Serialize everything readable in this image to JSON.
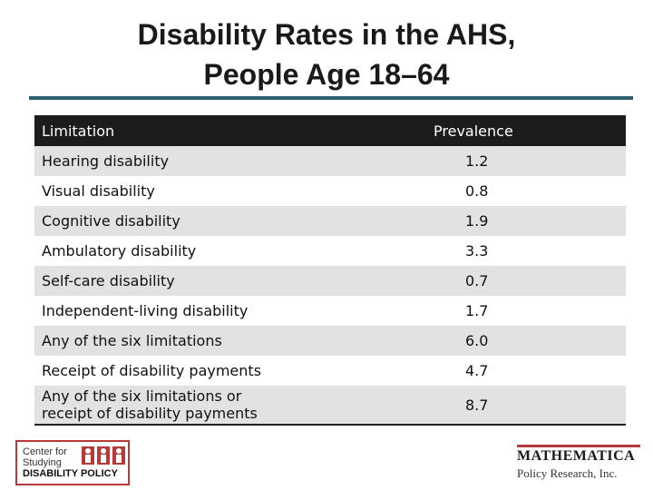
{
  "slide": {
    "title_line1": "Disability Rates in the AHS,",
    "title_line2": "People Age 18–64"
  },
  "table": {
    "columns": [
      "Limitation",
      "Prevalence"
    ],
    "rows": [
      {
        "limitation": "Hearing disability",
        "prevalence": "1.2"
      },
      {
        "limitation": "Visual disability",
        "prevalence": "0.8"
      },
      {
        "limitation": "Cognitive disability",
        "prevalence": "1.9"
      },
      {
        "limitation": "Ambulatory disability",
        "prevalence": "3.3"
      },
      {
        "limitation": "Self-care disability",
        "prevalence": "0.7"
      },
      {
        "limitation": "Independent-living disability",
        "prevalence": "1.7"
      },
      {
        "limitation": "Any of the six limitations",
        "prevalence": "6.0"
      },
      {
        "limitation": "Receipt of disability payments",
        "prevalence": "4.7"
      },
      {
        "limitation_line1": "Any of the six limitations or",
        "limitation_line2": "receipt of disability payments",
        "prevalence": "8.7"
      }
    ]
  },
  "logos": {
    "left": {
      "line1": "Center for",
      "line2": "Studying",
      "line3": "DISABILITY POLICY"
    },
    "right": {
      "name": "MATHEMATICA",
      "sub": "Policy Research, Inc."
    }
  },
  "colors": {
    "accent_rule": "#2f5e6e",
    "header_bg": "#1c1c1c",
    "shade": "#e2e2e2",
    "brand_red": "#b23a3a"
  }
}
